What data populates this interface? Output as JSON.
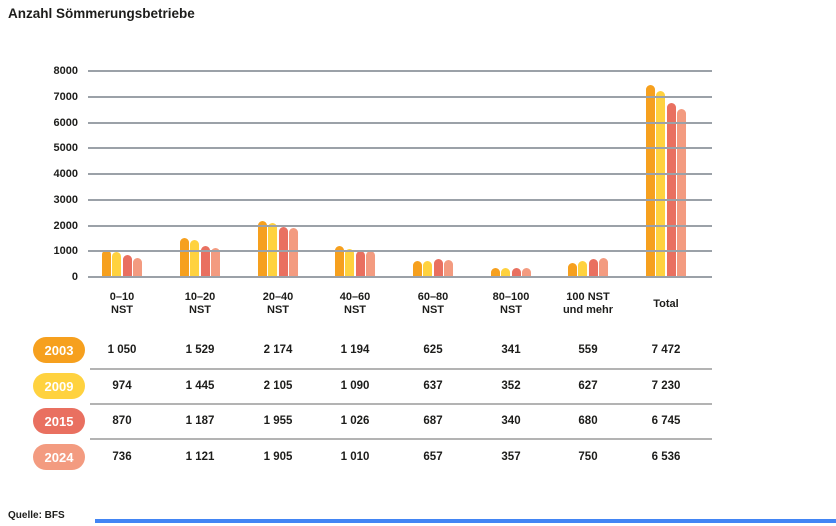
{
  "title": "Anzahl Sömmerungsbetriebe",
  "source": "Quelle: BFS",
  "colors": {
    "series_2003": "#F6A01E",
    "series_2009": "#FFD23F",
    "series_2015": "#E97060",
    "series_2024": "#F39B80",
    "gridline": "#9ba1a8",
    "divider": "#b3b3b3",
    "text": "#1d1d1b",
    "footer_accent": "#4285F4"
  },
  "chart_data": {
    "type": "bar",
    "title": "Anzahl Sömmerungsbetriebe",
    "categories": [
      "0–10 NST",
      "10–20 NST",
      "20–40 NST",
      "40–60 NST",
      "60–80 NST",
      "80–100 NST",
      "100 NST und mehr",
      "Total"
    ],
    "category_labels_two_line": [
      [
        "0–10",
        "NST"
      ],
      [
        "10–20",
        "NST"
      ],
      [
        "20–40",
        "NST"
      ],
      [
        "40–60",
        "NST"
      ],
      [
        "60–80",
        "NST"
      ],
      [
        "80–100",
        "NST"
      ],
      [
        "100 NST",
        "und mehr"
      ],
      [
        "Total",
        ""
      ]
    ],
    "series": [
      {
        "name": "2003",
        "color": "#F6A01E",
        "values": [
          1050,
          1529,
          2174,
          1194,
          625,
          341,
          559,
          7472
        ]
      },
      {
        "name": "2009",
        "color": "#FFD23F",
        "values": [
          974,
          1445,
          2105,
          1090,
          637,
          352,
          627,
          7230
        ]
      },
      {
        "name": "2015",
        "color": "#E97060",
        "values": [
          870,
          1187,
          1955,
          1026,
          687,
          340,
          680,
          6745
        ]
      },
      {
        "name": "2024",
        "color": "#F39B80",
        "values": [
          736,
          1121,
          1905,
          1010,
          657,
          357,
          750,
          6536
        ]
      }
    ],
    "xlabel": "",
    "ylabel": "",
    "ylim": [
      0,
      8000
    ],
    "ytick_step": 1000,
    "yticks": [
      "0",
      "1000",
      "2000",
      "3000",
      "4000",
      "5000",
      "6000",
      "7000",
      "8000"
    ],
    "grid": true,
    "gridlines_over_bars": true,
    "legend_position": "table-left"
  },
  "table": {
    "rows": [
      {
        "year": "2003",
        "color": "#F6A01E",
        "values": [
          "1 050",
          "1 529",
          "2 174",
          "1 194",
          "625",
          "341",
          "559",
          "7 472"
        ]
      },
      {
        "year": "2009",
        "color": "#FFD23F",
        "values": [
          "974",
          "1 445",
          "2 105",
          "1 090",
          "637",
          "352",
          "627",
          "7 230"
        ]
      },
      {
        "year": "2015",
        "color": "#E97060",
        "values": [
          "870",
          "1 187",
          "1 955",
          "1 026",
          "687",
          "340",
          "680",
          "6 745"
        ]
      },
      {
        "year": "2024",
        "color": "#F39B80",
        "values": [
          "736",
          "1 121",
          "1 905",
          "1 010",
          "657",
          "357",
          "750",
          "6 536"
        ]
      }
    ]
  }
}
